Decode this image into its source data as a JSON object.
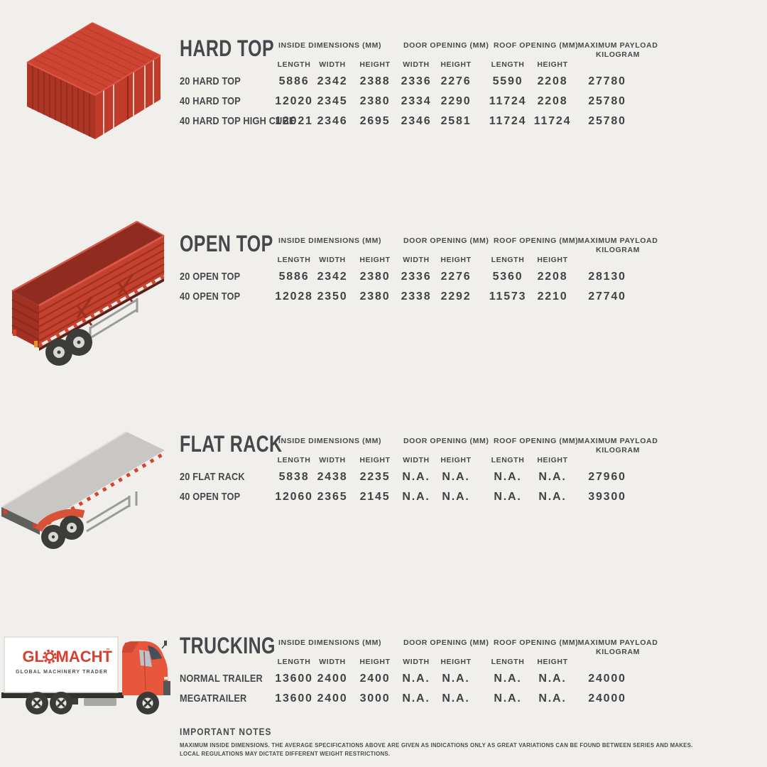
{
  "page": {
    "background": "#f0efec",
    "text_color": "#46484b",
    "accent_red": "#c4402f"
  },
  "table_headers": {
    "group1": "INSIDE DIMENSIONS (MM)",
    "group2": "DOOR OPENING (MM)",
    "group3": "ROOF OPENING (MM)",
    "group4_line1": "MAXIMUM PAYLOAD",
    "group4_line2": "KILOGRAM",
    "sub": [
      "LENGTH",
      "WIDTH",
      "HEIGHT",
      "WIDTH",
      "HEIGHT",
      "LENGTH",
      "HEIGHT"
    ]
  },
  "sections": [
    {
      "title": "HARD TOP",
      "illustration": "hard-top-container",
      "rows": [
        {
          "label": "20 HARD TOP",
          "values": [
            "5886",
            "2342",
            "2388",
            "2336",
            "2276",
            "5590",
            "2208",
            "27780"
          ]
        },
        {
          "label": "40 HARD TOP",
          "values": [
            "12020",
            "2345",
            "2380",
            "2334",
            "2290",
            "11724",
            "2208",
            "25780"
          ]
        },
        {
          "label": "40 HARD TOP HIGH CUBE",
          "values": [
            "12021",
            "2346",
            "2695",
            "2346",
            "2581",
            "11724",
            "11724",
            "25780"
          ]
        }
      ]
    },
    {
      "title": "OPEN TOP",
      "illustration": "open-top-trailer",
      "rows": [
        {
          "label": "20 OPEN TOP",
          "values": [
            "5886",
            "2342",
            "2380",
            "2336",
            "2276",
            "5360",
            "2208",
            "28130"
          ]
        },
        {
          "label": "40 OPEN TOP",
          "values": [
            "12028",
            "2350",
            "2380",
            "2338",
            "2292",
            "11573",
            "2210",
            "27740"
          ]
        }
      ]
    },
    {
      "title": "FLAT RACK",
      "illustration": "flat-rack-trailer",
      "rows": [
        {
          "label": "20 FLAT RACK",
          "values": [
            "5838",
            "2438",
            "2235",
            "N.A.",
            "N.A.",
            "N.A.",
            "N.A.",
            "27960"
          ]
        },
        {
          "label": "40 OPEN TOP",
          "values": [
            "12060",
            "2365",
            "2145",
            "N.A.",
            "N.A.",
            "N.A.",
            "N.A.",
            "39300"
          ]
        }
      ]
    },
    {
      "title": "TRUCKING",
      "illustration": "glomacht-truck",
      "rows": [
        {
          "label": "NORMAL TRAILER",
          "values": [
            "13600",
            "2400",
            "2400",
            "N.A.",
            "N.A.",
            "N.A.",
            "N.A.",
            "24000"
          ]
        },
        {
          "label": "MEGATRAILER",
          "values": [
            "13600",
            "2400",
            "3000",
            "N.A.",
            "N.A.",
            "N.A.",
            "N.A.",
            "24000"
          ]
        }
      ]
    }
  ],
  "logo": {
    "part1": "GL",
    "part2": "MACHT",
    "tm": "™",
    "subtitle": "GLOBAL MACHINERY TRADER",
    "color": "#d6402e"
  },
  "notes": {
    "title": "IMPORTANT NOTES",
    "lines": [
      "MAXIMUM INSIDE DIMENSIONS. THE AVERAGE SPECIFICATIONS ABOVE ARE GIVEN AS INDICATIONS ONLY AS GREAT VARIATIONS CAN BE FOUND BETWEEN SERIES AND MAKES.",
      "LOCAL REGULATIONS MAY DICTATE DIFFERENT WEIGHT RESTRICTIONS."
    ]
  }
}
